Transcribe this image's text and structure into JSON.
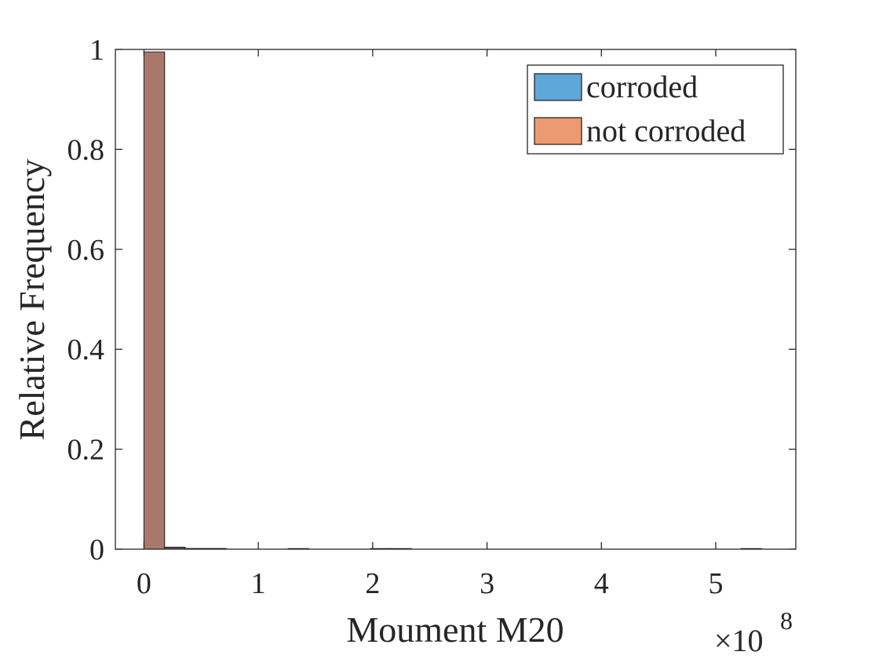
{
  "chart_data": {
    "type": "bar",
    "xlabel": "Moument M20",
    "ylabel": "Relative Frequency",
    "x_exponent_base": "×10",
    "x_exponent_power": "8",
    "xlim": [
      -0.25,
      5.7
    ],
    "ylim": [
      0,
      1
    ],
    "xticks": [
      0,
      1,
      2,
      3,
      4,
      5
    ],
    "xtick_labels": [
      "0",
      "1",
      "2",
      "3",
      "4",
      "5"
    ],
    "yticks": [
      0,
      0.2,
      0.4,
      0.6,
      0.8,
      1
    ],
    "ytick_labels": [
      "0",
      "0.2",
      "0.4",
      "0.6",
      "0.8",
      "1"
    ],
    "bin_width": 0.18,
    "grid": false,
    "legend_position": "top-right",
    "series": [
      {
        "name": "corroded",
        "color": "#5ea7d8",
        "bins": [
          {
            "x0": 0.0,
            "value": 0.993
          },
          {
            "x0": 0.18,
            "value": 0.004
          },
          {
            "x0": 0.36,
            "value": 0.001
          },
          {
            "x0": 0.54,
            "value": 0.0005
          },
          {
            "x0": 1.26,
            "value": 0.0004
          },
          {
            "x0": 1.98,
            "value": 0.0004
          },
          {
            "x0": 2.16,
            "value": 0.0003
          },
          {
            "x0": 5.22,
            "value": 0.0003
          }
        ]
      },
      {
        "name": "not corroded",
        "color": "#ec9a72",
        "bins": [
          {
            "x0": 0.0,
            "value": 0.995
          },
          {
            "x0": 0.18,
            "value": 0.003
          },
          {
            "x0": 0.36,
            "value": 0.0008
          },
          {
            "x0": 0.54,
            "value": 0.0003
          }
        ]
      }
    ],
    "overlap_color": "#a9786a"
  }
}
